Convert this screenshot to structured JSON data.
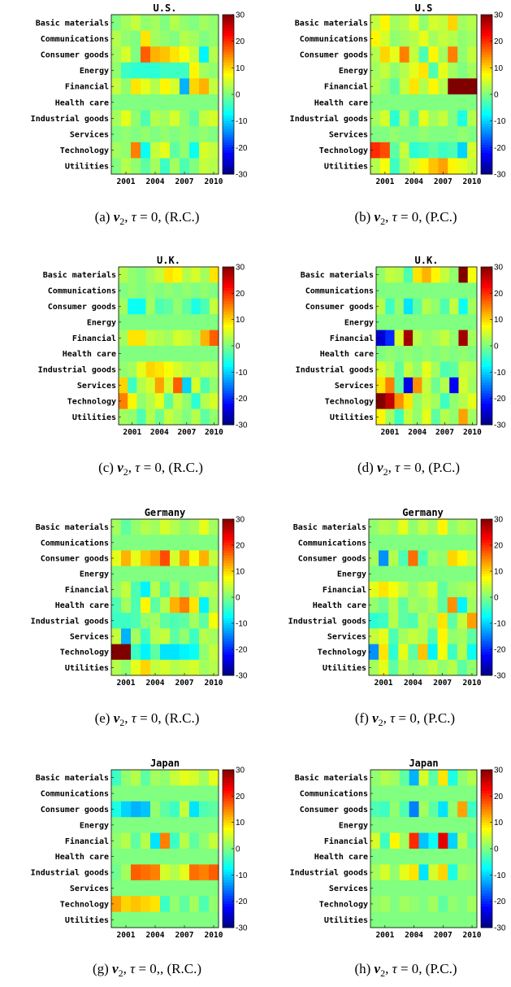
{
  "chart_data": [
    {
      "panel": "a",
      "type": "heatmap",
      "title": "U.S.",
      "caption": {
        "label": "(a)",
        "condition": "τ = 0,",
        "method": "(R.C.)"
      },
      "rows": [
        "Basic materials",
        "Communications",
        "Consumer goods",
        "Energy",
        "Financial",
        "Health care",
        "Industrial goods",
        "Services",
        "Technology",
        "Utilities"
      ],
      "x_ticks": [
        "2001",
        "2004",
        "2007",
        "2010"
      ],
      "colorbar": {
        "min": -30,
        "max": 30,
        "ticks": [
          "30",
          "20",
          "10",
          "0",
          "-10",
          "-20",
          "-30"
        ]
      },
      "values": [
        [
          0,
          2,
          4,
          1,
          2,
          0,
          3,
          1,
          0,
          2,
          1
        ],
        [
          3,
          1,
          0,
          9,
          2,
          1,
          0,
          3,
          2,
          0,
          1
        ],
        [
          2,
          5,
          0,
          17,
          12,
          11,
          9,
          7,
          4,
          -8,
          3
        ],
        [
          1,
          -4,
          -5,
          -5,
          -5,
          -4,
          -4,
          -4,
          8,
          2,
          1
        ],
        [
          4,
          1,
          9,
          6,
          3,
          8,
          5,
          -12,
          10,
          12,
          4
        ],
        [
          0,
          0,
          0,
          0,
          0,
          0,
          0,
          0,
          0,
          0,
          0
        ],
        [
          2,
          6,
          1,
          -3,
          3,
          2,
          5,
          1,
          -2,
          4,
          5
        ],
        [
          0,
          1,
          0,
          1,
          0,
          1,
          0,
          1,
          0,
          1,
          0
        ],
        [
          2,
          1,
          15,
          -7,
          4,
          6,
          -2,
          1,
          -7,
          5,
          4
        ],
        [
          0,
          3,
          1,
          -2,
          2,
          -4,
          2,
          -3,
          0,
          4,
          3
        ]
      ]
    },
    {
      "panel": "b",
      "type": "heatmap",
      "title": "U.S",
      "caption": {
        "label": "(b)",
        "condition": "τ = 0,",
        "method": "(P.C.)"
      },
      "rows": [
        "Basic materials",
        "Communications",
        "Consumer goods",
        "Energy",
        "Financial",
        "Health care",
        "Industrial goods",
        "Services",
        "Technology",
        "Utilities"
      ],
      "x_ticks": [
        "2001",
        "2004",
        "2007",
        "2010"
      ],
      "colorbar": {
        "min": -30,
        "max": 30,
        "ticks": [
          "30",
          "20",
          "10",
          "0",
          "-10",
          "-20",
          "-30"
        ]
      },
      "values": [
        [
          4,
          8,
          2,
          3,
          6,
          1,
          5,
          4,
          10,
          2,
          3
        ],
        [
          8,
          5,
          1,
          2,
          3,
          6,
          2,
          4,
          3,
          1,
          2
        ],
        [
          3,
          10,
          6,
          15,
          4,
          -3,
          8,
          2,
          15,
          1,
          4
        ],
        [
          2,
          4,
          1,
          3,
          6,
          9,
          -3,
          6,
          2,
          0,
          2
        ],
        [
          3,
          1,
          -2,
          4,
          9,
          3,
          8,
          3,
          30,
          30,
          30
        ],
        [
          0,
          0,
          0,
          0,
          0,
          0,
          0,
          0,
          0,
          0,
          0
        ],
        [
          2,
          5,
          -5,
          3,
          -3,
          6,
          2,
          4,
          0,
          -6,
          3
        ],
        [
          0,
          0,
          1,
          0,
          0,
          1,
          0,
          0,
          0,
          1,
          0
        ],
        [
          20,
          18,
          -2,
          4,
          -5,
          -4,
          -2,
          -4,
          -3,
          -10,
          5
        ],
        [
          3,
          7,
          -4,
          2,
          5,
          8,
          11,
          13,
          8,
          6,
          4
        ]
      ]
    },
    {
      "panel": "c",
      "type": "heatmap",
      "title": "U.K.",
      "caption": {
        "label": "(c)",
        "condition": "τ = 0,",
        "method": "(R.C.)"
      },
      "rows": [
        "Basic materials",
        "Communications",
        "Consumer goods",
        "Energy",
        "Financial",
        "Health care",
        "Industrial goods",
        "Services",
        "Technology",
        "Utilities"
      ],
      "x_ticks": [
        "2001",
        "2004",
        "2007",
        "2010"
      ],
      "colorbar": {
        "min": -30,
        "max": 30,
        "ticks": [
          "30",
          "20",
          "10",
          "0",
          "-10",
          "-20",
          "-30"
        ]
      },
      "values": [
        [
          3,
          1,
          0,
          2,
          4,
          9,
          8,
          3,
          5,
          2,
          9
        ],
        [
          0,
          1,
          0,
          1,
          0,
          1,
          0,
          1,
          0,
          1,
          0
        ],
        [
          2,
          -7,
          -7,
          2,
          -3,
          -2,
          1,
          -2,
          -6,
          -3,
          4
        ],
        [
          0,
          0,
          0,
          0,
          0,
          0,
          0,
          0,
          0,
          0,
          0
        ],
        [
          2,
          9,
          9,
          4,
          3,
          2,
          5,
          4,
          2,
          12,
          17
        ],
        [
          0,
          0,
          0,
          0,
          0,
          0,
          0,
          0,
          0,
          0,
          0
        ],
        [
          1,
          2,
          6,
          10,
          9,
          7,
          5,
          3,
          2,
          4,
          3
        ],
        [
          10,
          -4,
          3,
          5,
          13,
          5,
          17,
          -10,
          5,
          -3,
          1
        ],
        [
          15,
          8,
          1,
          3,
          6,
          -2,
          4,
          1,
          -5,
          3,
          5
        ],
        [
          2,
          1,
          -3,
          3,
          -1,
          4,
          2,
          0,
          3,
          -2,
          1
        ]
      ]
    },
    {
      "panel": "d",
      "type": "heatmap",
      "title": "U.K.",
      "caption": {
        "label": "(d)",
        "condition": "τ = 0,",
        "method": "(P.C.)"
      },
      "rows": [
        "Basic materials",
        "Communications",
        "Consumer goods",
        "Energy",
        "Financial",
        "Health care",
        "Industrial goods",
        "Services",
        "Technology",
        "Utilities"
      ],
      "x_ticks": [
        "2001",
        "2004",
        "2007",
        "2010"
      ],
      "colorbar": {
        "min": -30,
        "max": 30,
        "ticks": [
          "30",
          "20",
          "10",
          "0",
          "-10",
          "-20",
          "-30"
        ]
      },
      "values": [
        [
          1,
          4,
          3,
          -3,
          9,
          12,
          8,
          4,
          1,
          30,
          7
        ],
        [
          0,
          0,
          0,
          0,
          0,
          0,
          0,
          0,
          0,
          0,
          0
        ],
        [
          3,
          -4,
          1,
          -9,
          -2,
          3,
          1,
          -3,
          4,
          -7,
          2
        ],
        [
          0,
          0,
          0,
          0,
          0,
          0,
          0,
          0,
          0,
          0,
          0
        ],
        [
          -25,
          -20,
          5,
          28,
          3,
          1,
          2,
          4,
          1,
          28,
          2
        ],
        [
          0,
          1,
          0,
          1,
          0,
          1,
          0,
          1,
          0,
          1,
          0
        ],
        [
          5,
          3,
          -2,
          4,
          1,
          6,
          2,
          -3,
          -2,
          4,
          3
        ],
        [
          9,
          15,
          -2,
          -24,
          14,
          4,
          -1,
          3,
          -23,
          5,
          2
        ],
        [
          30,
          26,
          14,
          9,
          1,
          4,
          2,
          -4,
          1,
          3,
          6
        ],
        [
          8,
          2,
          -4,
          4,
          1,
          6,
          -2,
          3,
          1,
          13,
          2
        ]
      ]
    },
    {
      "panel": "e",
      "type": "heatmap",
      "title": "Germany",
      "caption": {
        "label": "(e)",
        "condition": "τ = 0,",
        "method": "(R.C.)"
      },
      "rows": [
        "Basic materials",
        "Communications",
        "Consumer goods",
        "Energy",
        "Financial",
        "Health care",
        "Industrial goods",
        "Services",
        "Technology",
        "Utilities"
      ],
      "x_ticks": [
        "2001",
        "2004",
        "2007",
        "2010"
      ],
      "colorbar": {
        "min": -30,
        "max": 30,
        "ticks": [
          "30",
          "20",
          "10",
          "0",
          "-10",
          "-20",
          "-30"
        ]
      },
      "values": [
        [
          2,
          -2,
          1,
          3,
          2,
          5,
          3,
          1,
          2,
          6,
          2
        ],
        [
          0,
          0,
          0,
          0,
          0,
          0,
          0,
          0,
          0,
          0,
          0
        ],
        [
          6,
          12,
          6,
          11,
          13,
          18,
          5,
          13,
          7,
          12,
          4
        ],
        [
          0,
          0,
          0,
          0,
          0,
          0,
          0,
          0,
          0,
          0,
          0
        ],
        [
          1,
          4,
          -3,
          -8,
          3,
          -3,
          2,
          -2,
          1,
          4,
          3
        ],
        [
          -3,
          2,
          -3,
          8,
          -2,
          3,
          12,
          15,
          9,
          -8,
          2
        ],
        [
          -4,
          -4,
          -3,
          1,
          2,
          -2,
          -3,
          -2,
          2,
          -2,
          7
        ],
        [
          4,
          -12,
          2,
          -4,
          3,
          4,
          -2,
          1,
          -4,
          3,
          2
        ],
        [
          30,
          30,
          -4,
          -8,
          -2,
          -9,
          -9,
          -8,
          -7,
          1,
          4
        ],
        [
          3,
          1,
          6,
          10,
          4,
          5,
          3,
          4,
          5,
          2,
          3
        ]
      ]
    },
    {
      "panel": "f",
      "type": "heatmap",
      "title": "Germany",
      "caption": {
        "label": "(f)",
        "condition": "τ = 0,",
        "method": "(P.C.)"
      },
      "rows": [
        "Basic materials",
        "Communications",
        "Consumer goods",
        "Energy",
        "Financial",
        "Health care",
        "Industrial goods",
        "Services",
        "Technology",
        "Utilities"
      ],
      "x_ticks": [
        "2001",
        "2004",
        "2007",
        "2010"
      ],
      "colorbar": {
        "min": -30,
        "max": 30,
        "ticks": [
          "30",
          "20",
          "10",
          "0",
          "-10",
          "-20",
          "-30"
        ]
      },
      "values": [
        [
          1,
          3,
          2,
          6,
          1,
          4,
          2,
          8,
          1,
          3,
          2
        ],
        [
          0,
          0,
          0,
          0,
          0,
          0,
          0,
          0,
          0,
          0,
          0
        ],
        [
          2,
          -14,
          3,
          -3,
          16,
          -3,
          2,
          1,
          10,
          8,
          4
        ],
        [
          0,
          0,
          0,
          0,
          0,
          0,
          0,
          0,
          0,
          0,
          0
        ],
        [
          6,
          9,
          7,
          4,
          1,
          3,
          5,
          -2,
          1,
          2,
          3
        ],
        [
          1,
          -1,
          3,
          -2,
          2,
          1,
          3,
          -2,
          14,
          -8,
          2
        ],
        [
          -5,
          -4,
          3,
          -2,
          -3,
          3,
          1,
          9,
          -2,
          4,
          13
        ],
        [
          4,
          6,
          -3,
          2,
          4,
          3,
          -3,
          8,
          1,
          2,
          -2
        ],
        [
          -14,
          9,
          -5,
          6,
          -2,
          11,
          -8,
          7,
          -4,
          3,
          -7
        ],
        [
          2,
          6,
          -2,
          3,
          1,
          2,
          4,
          1,
          3,
          -2,
          1
        ]
      ]
    },
    {
      "panel": "g",
      "type": "heatmap",
      "title": "Japan",
      "caption": {
        "label": "(g)",
        "condition": "τ = 0,,",
        "method": "(R.C.)"
      },
      "rows": [
        "Basic materials",
        "Communications",
        "Consumer goods",
        "Energy",
        "Financial",
        "Health care",
        "Industrial goods",
        "Services",
        "Technology",
        "Utilities"
      ],
      "x_ticks": [
        "2001",
        "2004",
        "2007",
        "2010"
      ],
      "colorbar": {
        "min": -30,
        "max": 30,
        "ticks": [
          "30",
          "20",
          "10",
          "0",
          "-10",
          "-20",
          "-30"
        ]
      },
      "values": [
        [
          -4,
          1,
          3,
          -2,
          2,
          1,
          4,
          6,
          5,
          2,
          6
        ],
        [
          0,
          0,
          0,
          0,
          0,
          0,
          0,
          0,
          0,
          0,
          0
        ],
        [
          -6,
          -10,
          -12,
          -11,
          1,
          -2,
          -4,
          4,
          -9,
          -3,
          -2
        ],
        [
          0,
          0,
          0,
          0,
          0,
          0,
          0,
          0,
          0,
          0,
          0
        ],
        [
          1,
          3,
          -2,
          3,
          -9,
          15,
          -4,
          3,
          -2,
          1,
          4
        ],
        [
          0,
          0,
          0,
          0,
          0,
          0,
          0,
          0,
          0,
          0,
          0
        ],
        [
          -1,
          2,
          17,
          16,
          15,
          5,
          3,
          6,
          16,
          15,
          17
        ],
        [
          0,
          0,
          0,
          0,
          0,
          0,
          0,
          0,
          0,
          0,
          0
        ],
        [
          13,
          10,
          11,
          10,
          9,
          -4,
          1,
          -2,
          2,
          -3,
          1
        ],
        [
          0,
          0,
          0,
          0,
          0,
          0,
          0,
          0,
          0,
          0,
          0
        ]
      ]
    },
    {
      "panel": "h",
      "type": "heatmap",
      "title": "Japan",
      "caption": {
        "label": "(h)",
        "condition": "τ = 0,",
        "method": "(P.C.)"
      },
      "rows": [
        "Basic materials",
        "Communications",
        "Consumer goods",
        "Energy",
        "Financial",
        "Health care",
        "Industrial goods",
        "Services",
        "Technology",
        "Utilities"
      ],
      "x_ticks": [
        "2001",
        "2004",
        "2007",
        "2010"
      ],
      "colorbar": {
        "min": -30,
        "max": 30,
        "ticks": [
          "30",
          "20",
          "10",
          "0",
          "-10",
          "-20",
          "-30"
        ]
      },
      "values": [
        [
          1,
          3,
          2,
          -2,
          -12,
          5,
          -2,
          9,
          -6,
          1,
          3
        ],
        [
          0,
          0,
          0,
          0,
          0,
          0,
          0,
          0,
          0,
          0,
          0
        ],
        [
          -3,
          -4,
          1,
          -3,
          -15,
          2,
          -2,
          -9,
          1,
          13,
          -4
        ],
        [
          0,
          0,
          0,
          0,
          0,
          0,
          0,
          0,
          0,
          0,
          0
        ],
        [
          5,
          -4,
          8,
          2,
          20,
          -11,
          -7,
          24,
          -10,
          3,
          -2
        ],
        [
          0,
          0,
          0,
          0,
          0,
          0,
          0,
          0,
          0,
          0,
          0
        ],
        [
          2,
          5,
          1,
          6,
          9,
          -9,
          5,
          10,
          -6,
          2,
          1
        ],
        [
          0,
          0,
          0,
          0,
          0,
          0,
          0,
          0,
          0,
          0,
          0
        ],
        [
          1,
          2,
          0,
          2,
          1,
          0,
          2,
          -2,
          1,
          0,
          2
        ],
        [
          0,
          0,
          0,
          0,
          0,
          0,
          0,
          0,
          0,
          0,
          0
        ]
      ]
    }
  ]
}
